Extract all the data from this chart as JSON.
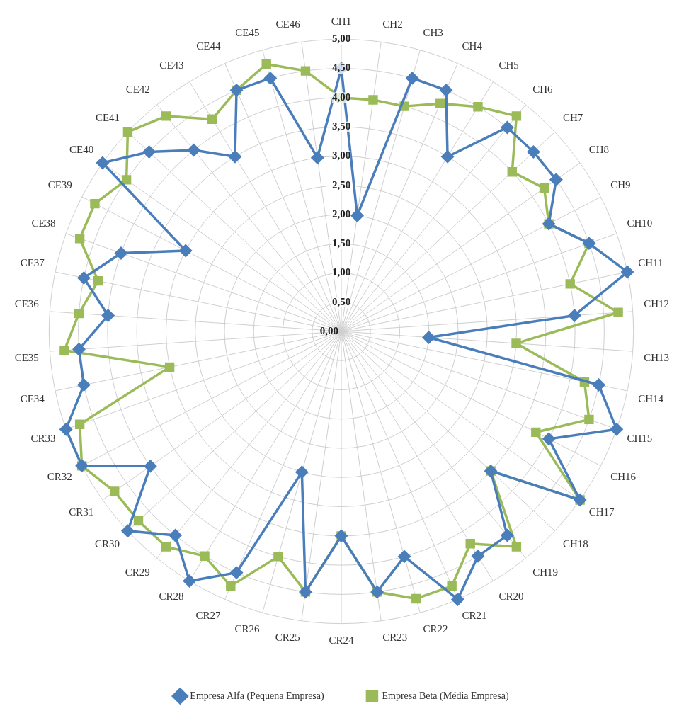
{
  "chart_data": {
    "type": "radar",
    "categories": [
      "CH1",
      "CH2",
      "CH3",
      "CH4",
      "CH5",
      "CH6",
      "CH7",
      "CH8",
      "CH9",
      "CH10",
      "CH11",
      "CH12",
      "CH13",
      "CH14",
      "CH15",
      "CH16",
      "CH17",
      "CH18",
      "CH19",
      "CR20",
      "CR21",
      "CR22",
      "CR23",
      "CR24",
      "CR25",
      "CR26",
      "CR27",
      "CR28",
      "CR29",
      "CR30",
      "CR31",
      "CR32",
      "CR33",
      "CE34",
      "CE35",
      "CE36",
      "CE37",
      "CE38",
      "CE39",
      "CE40",
      "CE41",
      "CE42",
      "CE43",
      "CE44",
      "CE45",
      "CE46"
    ],
    "series": [
      {
        "name": "Empresa Alfa (Pequena Empresa)",
        "color": "#4a7ebb",
        "marker": "diamond",
        "values": [
          4.5,
          2.0,
          4.5,
          4.5,
          3.5,
          4.5,
          4.5,
          4.5,
          4.0,
          4.5,
          5.0,
          4.0,
          1.5,
          4.5,
          5.0,
          4.0,
          5.0,
          3.5,
          4.5,
          4.5,
          5.0,
          4.0,
          4.5,
          3.5,
          4.5,
          2.5,
          4.5,
          5.0,
          4.5,
          5.0,
          4.0,
          5.0,
          5.0,
          4.5,
          4.5,
          4.0,
          4.5,
          4.0,
          3.0,
          5.0,
          4.5,
          4.0,
          3.5,
          4.5,
          4.5,
          3.0
        ]
      },
      {
        "name": "Empresa Beta (Média Empresa)",
        "color": "#9bbb59",
        "marker": "square",
        "values": [
          4.0,
          4.0,
          4.0,
          4.25,
          4.5,
          4.75,
          4.0,
          4.25,
          4.0,
          4.5,
          4.0,
          4.75,
          3.0,
          4.25,
          4.5,
          3.75,
          5.0,
          3.5,
          4.75,
          4.25,
          4.75,
          4.75,
          4.5,
          3.5,
          4.5,
          4.0,
          4.75,
          4.5,
          4.75,
          4.75,
          4.75,
          5.0,
          4.75,
          3.0,
          4.75,
          4.5,
          4.25,
          4.75,
          4.75,
          4.5,
          5.0,
          4.75,
          4.25,
          4.5,
          4.75,
          4.5
        ]
      }
    ],
    "ylim": [
      0,
      5
    ],
    "yticks": [
      {
        "value": 0,
        "label": "0,00"
      },
      {
        "value": 0.5,
        "label": "0,50"
      },
      {
        "value": 1,
        "label": "1,00"
      },
      {
        "value": 1.5,
        "label": "1,50"
      },
      {
        "value": 2,
        "label": "2,00"
      },
      {
        "value": 2.5,
        "label": "2,50"
      },
      {
        "value": 3,
        "label": "3,00"
      },
      {
        "value": 3.5,
        "label": "3,50"
      },
      {
        "value": 4,
        "label": "4,00"
      },
      {
        "value": 4.5,
        "label": "4,50"
      },
      {
        "value": 5,
        "label": "5,00"
      }
    ],
    "grid": true,
    "legend": "bottom",
    "line_style": "solid"
  }
}
